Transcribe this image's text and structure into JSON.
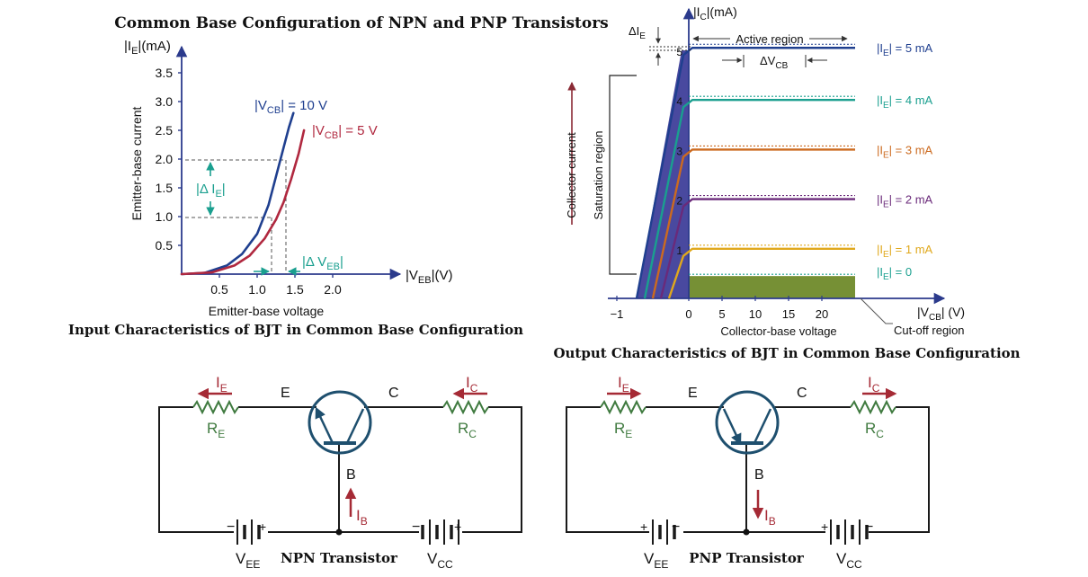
{
  "title": "Common Base Configuration of NPN and PNP Transistors",
  "colors": {
    "axis": "#2b3a8c",
    "navy": "#1f3f8f",
    "crimson": "#b0283f",
    "teal": "#1a9f8f",
    "orange": "#cc6a1f",
    "purple": "#6a2a7a",
    "gold": "#e0a81c",
    "olive": "#6f8a2a",
    "saturation": "#3f3f9a",
    "maroon": "#8a2a35",
    "green_text": "#3f7a3f",
    "black": "#111111"
  },
  "input_chart": {
    "caption": "Input Characteristics of BJT in Common Base Configuration",
    "ylabel_main": "Emitter-base current",
    "y_unit_label": {
      "pre": "|I",
      "sub": "E",
      "post": "|(mA)"
    },
    "xlabel_main": "Emitter-base voltage",
    "x_unit_label": {
      "pre": "|V",
      "sub": "EB",
      "post": "|(V)"
    },
    "delta_ie": {
      "pre": "|Δ I",
      "sub": "E",
      "post": "|"
    },
    "delta_veb": {
      "pre": "|Δ V",
      "sub": "EB",
      "post": "|"
    },
    "curve_10": {
      "pre": "|V",
      "sub": "CB",
      "post": "| = 10 V"
    },
    "curve_5": {
      "pre": "|V",
      "sub": "CB",
      "post": "| = 5 V"
    }
  },
  "output_chart": {
    "caption": "Output Characteristics of BJT in Common Base Configuration",
    "y_unit_label": {
      "pre": "|I",
      "sub": "C",
      "post": "|(mA)"
    },
    "ylabel_main": "Collector current",
    "xlabel_main": "Collector-base voltage",
    "x_unit_label": {
      "pre": "|V",
      "sub": "CB",
      "post": "| (V)"
    },
    "active_region": "Active region",
    "saturation_region": "Saturation region",
    "cutoff_region": "Cut-off region",
    "delta_ie": {
      "pre": "ΔI",
      "sub": "E",
      "post": ""
    },
    "delta_vcb": {
      "pre": "ΔV",
      "sub": "CB",
      "post": ""
    },
    "curve_labels": [
      {
        "pre": "|I",
        "sub": "E",
        "post": "| = 5 mA"
      },
      {
        "pre": "|I",
        "sub": "E",
        "post": "| = 4 mA"
      },
      {
        "pre": "|I",
        "sub": "E",
        "post": "| = 3 mA"
      },
      {
        "pre": "|I",
        "sub": "E",
        "post": "| = 2 mA"
      },
      {
        "pre": "|I",
        "sub": "E",
        "post": "| = 1 mA"
      },
      {
        "pre": "|I",
        "sub": "E",
        "post": "| = 0"
      }
    ]
  },
  "chart_data": [
    {
      "type": "line",
      "title": "Input Characteristics of BJT in Common Base Configuration",
      "xlabel": "Emitter-base voltage",
      "ylabel": "Emitter-base current",
      "x_unit": "|VEB|(V)",
      "y_unit": "|IE|(mA)",
      "x_ticks": [
        "0.5",
        "1.0",
        "1.5",
        "2.0"
      ],
      "y_ticks": [
        "0.5",
        "1.0",
        "1.5",
        "2.0",
        "2.5",
        "3.0",
        "3.5"
      ],
      "xlim": [
        0,
        2.7
      ],
      "ylim": [
        0,
        4.0
      ],
      "series": [
        {
          "name": "|VCB| = 10 V",
          "x": [
            0,
            0.3,
            0.6,
            0.8,
            1.0,
            1.15,
            1.25,
            1.35,
            1.42,
            1.48
          ],
          "y": [
            0,
            0.02,
            0.15,
            0.35,
            0.7,
            1.2,
            1.7,
            2.2,
            2.55,
            2.8
          ]
        },
        {
          "name": "|VCB| = 5 V",
          "x": [
            0,
            0.4,
            0.7,
            0.9,
            1.1,
            1.25,
            1.35,
            1.45,
            1.55,
            1.62
          ],
          "y": [
            0,
            0.03,
            0.15,
            0.32,
            0.62,
            0.95,
            1.25,
            1.65,
            2.1,
            2.5
          ]
        }
      ]
    },
    {
      "type": "line",
      "title": "Output Characteristics of BJT in Common Base Configuration",
      "xlabel": "Collector-base voltage",
      "ylabel": "Collector current",
      "x_unit": "|VCB| (V)",
      "y_unit": "|IC|(mA)",
      "x_ticks": [
        "−1",
        "0",
        "5",
        "10",
        "15",
        "20"
      ],
      "y_ticks": [
        "1",
        "2",
        "3",
        "4",
        "5"
      ],
      "xlim": [
        -1.5,
        26
      ],
      "ylim": [
        0,
        5.5
      ],
      "series": [
        {
          "name": "|IE| = 5 mA",
          "x": [
            -0.55,
            0.0,
            25
          ],
          "y": [
            0,
            5.0,
            5.05
          ]
        },
        {
          "name": "|IE| = 4 mA",
          "x": [
            -0.65,
            -0.1,
            0.0,
            25
          ],
          "y": [
            0,
            3.8,
            3.95,
            4.0
          ]
        },
        {
          "name": "|IE| = 3 mA",
          "x": [
            -0.75,
            -0.2,
            0.0,
            25
          ],
          "y": [
            0,
            2.8,
            2.95,
            3.0
          ]
        },
        {
          "name": "|IE| = 2 mA",
          "x": [
            -0.85,
            -0.3,
            0.0,
            25
          ],
          "y": [
            0,
            1.75,
            1.95,
            2.0
          ]
        },
        {
          "name": "|IE| = 1 mA",
          "x": [
            -0.95,
            -0.4,
            0.0,
            25
          ],
          "y": [
            0,
            0.75,
            0.95,
            1.0
          ]
        },
        {
          "name": "|IE| = 0",
          "x": [
            -1.0,
            25
          ],
          "y": [
            0,
            0.02
          ]
        }
      ]
    }
  ],
  "npn": {
    "label": "NPN Transistor",
    "ie": {
      "pre": "I",
      "sub": "E"
    },
    "ic": {
      "pre": "I",
      "sub": "C"
    },
    "ib": {
      "pre": "I",
      "sub": "B"
    },
    "re": {
      "pre": "R",
      "sub": "E"
    },
    "rc": {
      "pre": "R",
      "sub": "C"
    },
    "vee": {
      "pre": "V",
      "sub": "EE"
    },
    "vcc": {
      "pre": "V",
      "sub": "CC"
    },
    "e": "E",
    "c": "C",
    "b": "B",
    "minus": "−",
    "plus": "+"
  },
  "pnp": {
    "label": "PNP Transistor",
    "ie": {
      "pre": "I",
      "sub": "E"
    },
    "ic": {
      "pre": "I",
      "sub": "C"
    },
    "ib": {
      "pre": "I",
      "sub": "B"
    },
    "re": {
      "pre": "R",
      "sub": "E"
    },
    "rc": {
      "pre": "R",
      "sub": "C"
    },
    "vee": {
      "pre": "V",
      "sub": "EE"
    },
    "vcc": {
      "pre": "V",
      "sub": "CC"
    },
    "e": "E",
    "c": "C",
    "b": "B",
    "minus": "−",
    "plus": "+"
  }
}
